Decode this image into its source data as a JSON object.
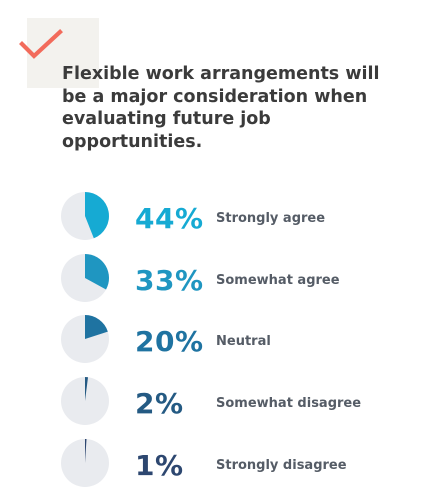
{
  "headline": "Flexible work arrangements will be a major consideration when evaluating future job opportunities.",
  "icons": {
    "check": "check-icon"
  },
  "colors": {
    "check": "#f26b5b",
    "check_background": "#f3f2ee",
    "headline_text": "#3b3b3b",
    "pie_background": "#e9ebef",
    "label_text": "#555c66"
  },
  "chart_data": {
    "type": "pie",
    "title": "Flexible work arrangements will be a major consideration when evaluating future job opportunities.",
    "unit": "%",
    "items": [
      {
        "label": "Strongly agree",
        "value": 44,
        "display": "44%",
        "color": "#16aad3"
      },
      {
        "label": "Somewhat agree",
        "value": 33,
        "display": "33%",
        "color": "#1f96c1"
      },
      {
        "label": "Neutral",
        "value": 20,
        "display": "20%",
        "color": "#1f73a1"
      },
      {
        "label": "Somewhat disagree",
        "value": 2,
        "display": "2%",
        "color": "#245a83"
      },
      {
        "label": "Strongly disagree",
        "value": 1,
        "display": "1%",
        "color": "#2d4770"
      }
    ]
  }
}
